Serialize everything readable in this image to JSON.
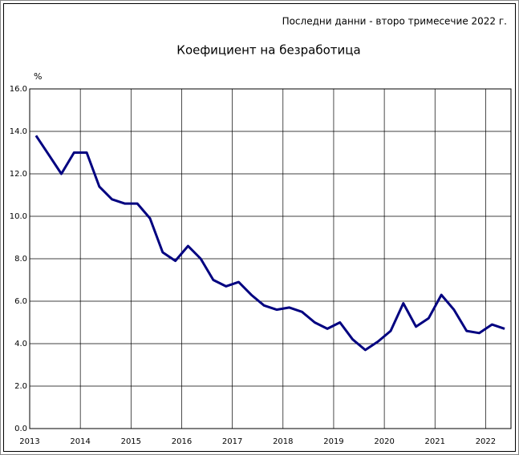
{
  "chart_data": {
    "type": "line",
    "note": "Последни данни - второ тримесечие 2022 г.",
    "title": "Коефициент на безработица",
    "y_label": "%",
    "categories": [
      "2013",
      null,
      null,
      null,
      "2014",
      null,
      null,
      null,
      "2015",
      null,
      null,
      null,
      "2016",
      null,
      null,
      null,
      "2017",
      null,
      null,
      null,
      "2018",
      null,
      null,
      null,
      "2019",
      null,
      null,
      null,
      "2020",
      null,
      null,
      null,
      "2021",
      null,
      null,
      null,
      "2022",
      null
    ],
    "series": [
      {
        "name": "Коефициент на безработица",
        "color": "#000080",
        "values": [
          13.8,
          12.9,
          12.0,
          13.0,
          13.0,
          11.4,
          10.8,
          10.6,
          10.6,
          9.9,
          8.3,
          7.9,
          8.6,
          8.0,
          7.0,
          6.7,
          6.9,
          6.3,
          5.8,
          5.6,
          5.7,
          5.5,
          5.0,
          4.7,
          5.0,
          4.2,
          3.7,
          4.1,
          4.6,
          5.9,
          4.8,
          5.2,
          6.3,
          5.6,
          4.6,
          4.5,
          4.9,
          4.7
        ]
      }
    ],
    "ylim": [
      0,
      16
    ],
    "yticks": [
      {
        "value": 0,
        "label": "0.0"
      },
      {
        "value": 2,
        "label": "2.0"
      },
      {
        "value": 4,
        "label": "4.0"
      },
      {
        "value": 6,
        "label": "6.0"
      },
      {
        "value": 8,
        "label": "8.0"
      },
      {
        "value": 10,
        "label": "10.0"
      },
      {
        "value": 12,
        "label": "12.0"
      },
      {
        "value": 14,
        "label": "14.0"
      },
      {
        "value": 16,
        "label": "16.0"
      }
    ],
    "grid": true
  }
}
